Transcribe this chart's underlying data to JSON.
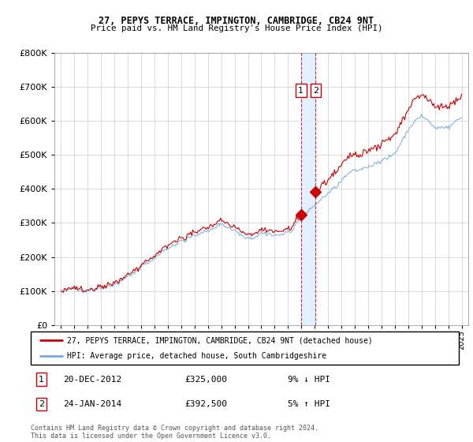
{
  "title1": "27, PEPYS TERRACE, IMPINGTON, CAMBRIDGE, CB24 9NT",
  "title2": "Price paid vs. HM Land Registry's House Price Index (HPI)",
  "legend_line1": "27, PEPYS TERRACE, IMPINGTON, CAMBRIDGE, CB24 9NT (detached house)",
  "legend_line2": "HPI: Average price, detached house, South Cambridgeshire",
  "annotation1_date": "20-DEC-2012",
  "annotation1_price": "£325,000",
  "annotation1_pct": "9% ↓ HPI",
  "annotation2_date": "24-JAN-2014",
  "annotation2_price": "£392,500",
  "annotation2_pct": "5% ↑ HPI",
  "footer": "Contains HM Land Registry data © Crown copyright and database right 2024.\nThis data is licensed under the Open Government Licence v3.0.",
  "line1_color": "#cc0000",
  "line2_color": "#7aaadd",
  "shade_color": "#ddeeff",
  "box_color": "#cc0000",
  "sale1_x": 2012.97,
  "sale1_y": 325000,
  "sale2_x": 2014.07,
  "sale2_y": 392500,
  "shade_x1": 2012.97,
  "shade_x2": 2014.07,
  "ylim": [
    0,
    800000
  ],
  "xlim_min": 1994.5,
  "xlim_max": 2025.5
}
